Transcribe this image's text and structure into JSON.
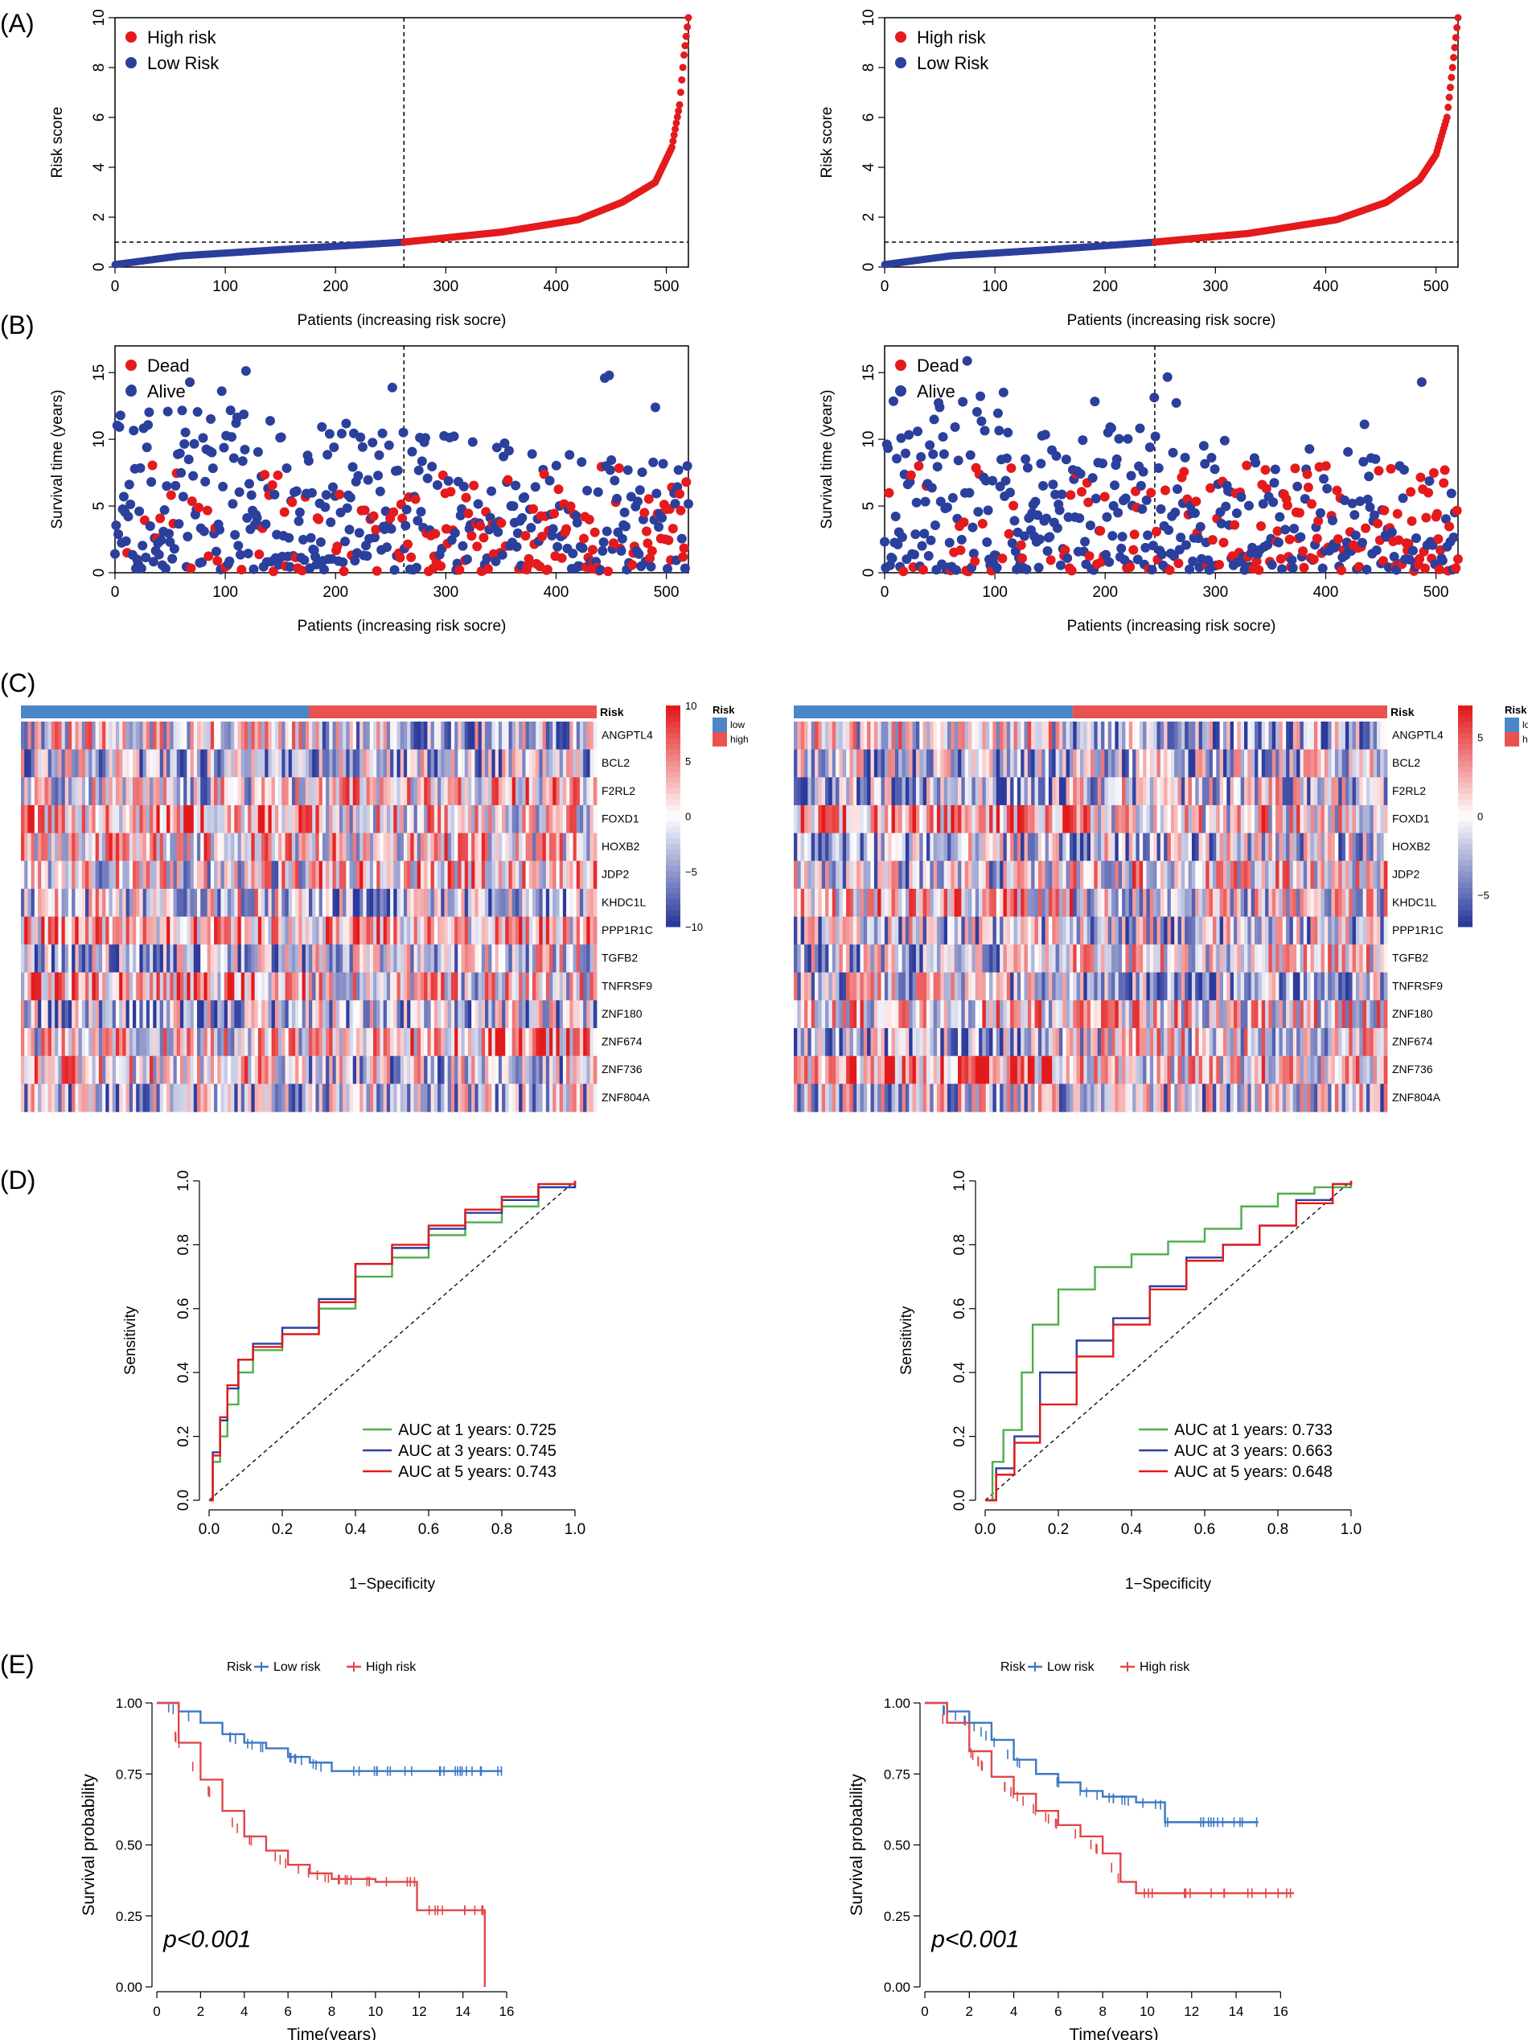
{
  "panel_labels": [
    "(A)",
    "(B)",
    "(C)",
    "(D)",
    "(E)"
  ],
  "colors": {
    "high": "#e41a1c",
    "low": "#2b3f9c",
    "green": "#4daf4a",
    "blue": "#2b3f9c",
    "red": "#e41a1c",
    "km_low": "#3b78c4",
    "km_high": "#e0484a",
    "heat_pos": "#e31a1c",
    "heat_neg": "#2b3a9c"
  },
  "genes": [
    "ANGPTL4",
    "BCL2",
    "F2RL2",
    "FOXD1",
    "HOXB2",
    "JDP2",
    "KHDC1L",
    "PPP1R1C",
    "TGFB2",
    "TNFRSF9",
    "ZNF180",
    "ZNF674",
    "ZNF736",
    "ZNF804A"
  ],
  "chart_data": [
    {
      "panel": "A",
      "side": "left",
      "type": "scatter",
      "title": "",
      "xlabel": "Patients (increasing risk socre)",
      "ylabel": "Risk score",
      "xlim": [
        0,
        520
      ],
      "ylim": [
        0,
        10
      ],
      "xticks": [
        "0",
        "100",
        "200",
        "300",
        "400",
        "500"
      ],
      "yticks": [
        "0",
        "2",
        "4",
        "6",
        "8",
        "10"
      ],
      "legend": [
        "High risk",
        "Low Risk"
      ],
      "legend_position": "top-left",
      "cutoff_x": 262,
      "cutoff_y": 1.0,
      "n": 522,
      "curve_points": [
        [
          0,
          0.1
        ],
        [
          60,
          0.45
        ],
        [
          150,
          0.7
        ],
        [
          262,
          1.0
        ],
        [
          350,
          1.4
        ],
        [
          420,
          1.9
        ],
        [
          460,
          2.6
        ],
        [
          490,
          3.4
        ],
        [
          505,
          4.8
        ],
        [
          512,
          6.5
        ],
        [
          516,
          8.5
        ],
        [
          520,
          10
        ]
      ]
    },
    {
      "panel": "A",
      "side": "right",
      "type": "scatter",
      "title": "",
      "xlabel": "Patients (increasing risk socre)",
      "ylabel": "Risk score",
      "xlim": [
        0,
        520
      ],
      "ylim": [
        0,
        10
      ],
      "xticks": [
        "0",
        "100",
        "200",
        "300",
        "400",
        "500"
      ],
      "yticks": [
        "0",
        "2",
        "4",
        "6",
        "8",
        "10"
      ],
      "legend": [
        "High risk",
        "Low Risk"
      ],
      "legend_position": "top-left",
      "cutoff_x": 245,
      "cutoff_y": 1.0,
      "n": 522,
      "curve_points": [
        [
          0,
          0.1
        ],
        [
          60,
          0.45
        ],
        [
          150,
          0.7
        ],
        [
          245,
          1.0
        ],
        [
          330,
          1.35
        ],
        [
          410,
          1.9
        ],
        [
          455,
          2.6
        ],
        [
          485,
          3.5
        ],
        [
          500,
          4.5
        ],
        [
          510,
          6.0
        ],
        [
          515,
          8.0
        ],
        [
          520,
          10
        ]
      ]
    },
    {
      "panel": "B",
      "side": "left",
      "type": "scatter",
      "xlabel": "Patients (increasing risk socre)",
      "ylabel": "Survival time (years)",
      "xlim": [
        0,
        520
      ],
      "ylim": [
        0,
        17
      ],
      "xticks": [
        "0",
        "100",
        "200",
        "300",
        "400",
        "500"
      ],
      "yticks": [
        "0",
        "5",
        "10",
        "15"
      ],
      "legend": [
        "Dead",
        "Alive"
      ],
      "legend_position": "top-left",
      "cutoff_x": 262,
      "n": 522
    },
    {
      "panel": "B",
      "side": "right",
      "type": "scatter",
      "xlabel": "Patients (increasing risk socre)",
      "ylabel": "Survival time (years)",
      "xlim": [
        0,
        520
      ],
      "ylim": [
        0,
        17
      ],
      "xticks": [
        "0",
        "100",
        "200",
        "300",
        "400",
        "500"
      ],
      "yticks": [
        "0",
        "5",
        "10",
        "15"
      ],
      "legend": [
        "Dead",
        "Alive"
      ],
      "legend_position": "top-left",
      "cutoff_x": 245,
      "n": 522
    },
    {
      "panel": "C",
      "side": "left",
      "type": "heatmap",
      "annotation_label": "Risk",
      "annotation_legend": [
        "low",
        "high"
      ],
      "scale_ticks": [
        "10",
        "5",
        "0",
        "−5",
        "−10"
      ],
      "scale_range": [
        -10,
        10
      ],
      "low_fraction": 0.5
    },
    {
      "panel": "C",
      "side": "right",
      "type": "heatmap",
      "annotation_label": "Risk",
      "annotation_legend": [
        "low",
        "high"
      ],
      "scale_ticks": [
        "5",
        "0",
        "−5"
      ],
      "scale_range": [
        -7,
        7
      ],
      "low_fraction": 0.47
    },
    {
      "panel": "D",
      "side": "left",
      "type": "line",
      "xlabel": "1−Specificity",
      "ylabel": "Sensitivity",
      "xlim": [
        0,
        1
      ],
      "ylim": [
        0,
        1
      ],
      "xticks": [
        "0.0",
        "0.2",
        "0.4",
        "0.6",
        "0.8",
        "1.0"
      ],
      "yticks": [
        "0.0",
        "0.2",
        "0.4",
        "0.6",
        "0.8",
        "1.0"
      ],
      "legend_position": "bottom-right",
      "series": [
        {
          "name": "AUC at 1 years: 0.725",
          "color": "green",
          "points": [
            [
              0,
              0
            ],
            [
              0.01,
              0.12
            ],
            [
              0.03,
              0.2
            ],
            [
              0.05,
              0.3
            ],
            [
              0.08,
              0.4
            ],
            [
              0.12,
              0.47
            ],
            [
              0.2,
              0.52
            ],
            [
              0.3,
              0.6
            ],
            [
              0.4,
              0.7
            ],
            [
              0.5,
              0.76
            ],
            [
              0.6,
              0.83
            ],
            [
              0.7,
              0.87
            ],
            [
              0.8,
              0.92
            ],
            [
              0.9,
              0.98
            ],
            [
              1,
              1
            ]
          ]
        },
        {
          "name": "AUC at 3 years: 0.745",
          "color": "blue",
          "points": [
            [
              0,
              0
            ],
            [
              0.01,
              0.15
            ],
            [
              0.03,
              0.25
            ],
            [
              0.05,
              0.35
            ],
            [
              0.08,
              0.44
            ],
            [
              0.12,
              0.49
            ],
            [
              0.2,
              0.54
            ],
            [
              0.3,
              0.63
            ],
            [
              0.4,
              0.74
            ],
            [
              0.5,
              0.79
            ],
            [
              0.6,
              0.85
            ],
            [
              0.7,
              0.9
            ],
            [
              0.8,
              0.94
            ],
            [
              0.9,
              0.98
            ],
            [
              1,
              1
            ]
          ]
        },
        {
          "name": "AUC at 5 years: 0.743",
          "color": "red",
          "points": [
            [
              0,
              0
            ],
            [
              0.01,
              0.14
            ],
            [
              0.03,
              0.26
            ],
            [
              0.05,
              0.36
            ],
            [
              0.08,
              0.44
            ],
            [
              0.12,
              0.48
            ],
            [
              0.2,
              0.52
            ],
            [
              0.3,
              0.62
            ],
            [
              0.4,
              0.74
            ],
            [
              0.5,
              0.8
            ],
            [
              0.6,
              0.86
            ],
            [
              0.7,
              0.91
            ],
            [
              0.8,
              0.95
            ],
            [
              0.9,
              0.99
            ],
            [
              1,
              1
            ]
          ]
        }
      ]
    },
    {
      "panel": "D",
      "side": "right",
      "type": "line",
      "xlabel": "1−Specificity",
      "ylabel": "Sensitivity",
      "xlim": [
        0,
        1
      ],
      "ylim": [
        0,
        1
      ],
      "xticks": [
        "0.0",
        "0.2",
        "0.4",
        "0.6",
        "0.8",
        "1.0"
      ],
      "yticks": [
        "0.0",
        "0.2",
        "0.4",
        "0.6",
        "0.8",
        "1.0"
      ],
      "legend_position": "bottom-right",
      "series": [
        {
          "name": "AUC at 1 years: 0.733",
          "color": "green",
          "points": [
            [
              0,
              0
            ],
            [
              0.02,
              0.12
            ],
            [
              0.05,
              0.22
            ],
            [
              0.1,
              0.4
            ],
            [
              0.13,
              0.55
            ],
            [
              0.2,
              0.66
            ],
            [
              0.3,
              0.73
            ],
            [
              0.4,
              0.77
            ],
            [
              0.5,
              0.81
            ],
            [
              0.6,
              0.85
            ],
            [
              0.7,
              0.92
            ],
            [
              0.8,
              0.96
            ],
            [
              0.9,
              0.98
            ],
            [
              1,
              1
            ]
          ]
        },
        {
          "name": "AUC at 3 years: 0.663",
          "color": "blue",
          "points": [
            [
              0,
              0
            ],
            [
              0.03,
              0.1
            ],
            [
              0.08,
              0.2
            ],
            [
              0.15,
              0.4
            ],
            [
              0.25,
              0.5
            ],
            [
              0.35,
              0.57
            ],
            [
              0.45,
              0.67
            ],
            [
              0.55,
              0.76
            ],
            [
              0.65,
              0.8
            ],
            [
              0.75,
              0.86
            ],
            [
              0.85,
              0.94
            ],
            [
              0.95,
              0.99
            ],
            [
              1,
              1
            ]
          ]
        },
        {
          "name": "AUC at 5 years: 0.648",
          "color": "red",
          "points": [
            [
              0,
              0
            ],
            [
              0.03,
              0.08
            ],
            [
              0.08,
              0.18
            ],
            [
              0.15,
              0.3
            ],
            [
              0.25,
              0.45
            ],
            [
              0.35,
              0.55
            ],
            [
              0.45,
              0.66
            ],
            [
              0.55,
              0.75
            ],
            [
              0.65,
              0.8
            ],
            [
              0.75,
              0.86
            ],
            [
              0.85,
              0.93
            ],
            [
              0.95,
              0.99
            ],
            [
              1,
              1
            ]
          ]
        }
      ]
    },
    {
      "panel": "E",
      "side": "left",
      "type": "line",
      "legend_title": "Risk",
      "legend": [
        "Low risk",
        "High risk"
      ],
      "xlabel": "Time(years)",
      "ylabel": "Survival probability",
      "xlim": [
        0,
        16
      ],
      "ylim": [
        0,
        1
      ],
      "xticks": [
        "0",
        "2",
        "4",
        "6",
        "8",
        "10",
        "12",
        "14",
        "16"
      ],
      "yticks": [
        "0.00",
        "0.25",
        "0.50",
        "0.75",
        "1.00"
      ],
      "annotation": "p<0.001",
      "series": [
        {
          "name": "Low risk",
          "color": "km_low",
          "points": [
            [
              0,
              1
            ],
            [
              1,
              0.97
            ],
            [
              2,
              0.93
            ],
            [
              3,
              0.89
            ],
            [
              4,
              0.86
            ],
            [
              5,
              0.84
            ],
            [
              6,
              0.81
            ],
            [
              7,
              0.79
            ],
            [
              8,
              0.76
            ],
            [
              10,
              0.76
            ],
            [
              12,
              0.76
            ],
            [
              14,
              0.76
            ],
            [
              15.8,
              0.76
            ]
          ]
        },
        {
          "name": "High risk",
          "color": "km_high",
          "points": [
            [
              0,
              1
            ],
            [
              1,
              0.86
            ],
            [
              2,
              0.73
            ],
            [
              3,
              0.62
            ],
            [
              4,
              0.53
            ],
            [
              5,
              0.48
            ],
            [
              6,
              0.43
            ],
            [
              7,
              0.4
            ],
            [
              8,
              0.38
            ],
            [
              10,
              0.37
            ],
            [
              11.9,
              0.37
            ],
            [
              11.9,
              0.27
            ],
            [
              14,
              0.27
            ],
            [
              15,
              0.27
            ],
            [
              15,
              0
            ]
          ]
        }
      ]
    },
    {
      "panel": "E",
      "side": "right",
      "type": "line",
      "legend_title": "Risk",
      "legend": [
        "Low risk",
        "High risk"
      ],
      "xlabel": "Time(years)",
      "ylabel": "Survival probability",
      "xlim": [
        0,
        17
      ],
      "ylim": [
        0,
        1
      ],
      "xticks": [
        "0",
        "2",
        "4",
        "6",
        "8",
        "10",
        "12",
        "14",
        "16"
      ],
      "yticks": [
        "0.00",
        "0.25",
        "0.50",
        "0.75",
        "1.00"
      ],
      "annotation": "p<0.001",
      "series": [
        {
          "name": "Low risk",
          "color": "km_low",
          "points": [
            [
              0,
              1
            ],
            [
              1,
              0.97
            ],
            [
              2,
              0.93
            ],
            [
              3,
              0.87
            ],
            [
              4,
              0.8
            ],
            [
              5,
              0.75
            ],
            [
              6,
              0.72
            ],
            [
              7,
              0.69
            ],
            [
              8,
              0.67
            ],
            [
              9.5,
              0.65
            ],
            [
              10.8,
              0.64
            ],
            [
              10.8,
              0.58
            ],
            [
              13,
              0.58
            ],
            [
              15,
              0.58
            ]
          ]
        },
        {
          "name": "High risk",
          "color": "km_high",
          "points": [
            [
              0,
              1
            ],
            [
              1,
              0.93
            ],
            [
              2,
              0.83
            ],
            [
              3,
              0.74
            ],
            [
              4,
              0.68
            ],
            [
              5,
              0.62
            ],
            [
              6,
              0.57
            ],
            [
              7,
              0.53
            ],
            [
              8,
              0.47
            ],
            [
              8.8,
              0.37
            ],
            [
              9.5,
              0.33
            ],
            [
              12,
              0.33
            ],
            [
              14,
              0.33
            ],
            [
              16.6,
              0.33
            ]
          ]
        }
      ]
    }
  ]
}
